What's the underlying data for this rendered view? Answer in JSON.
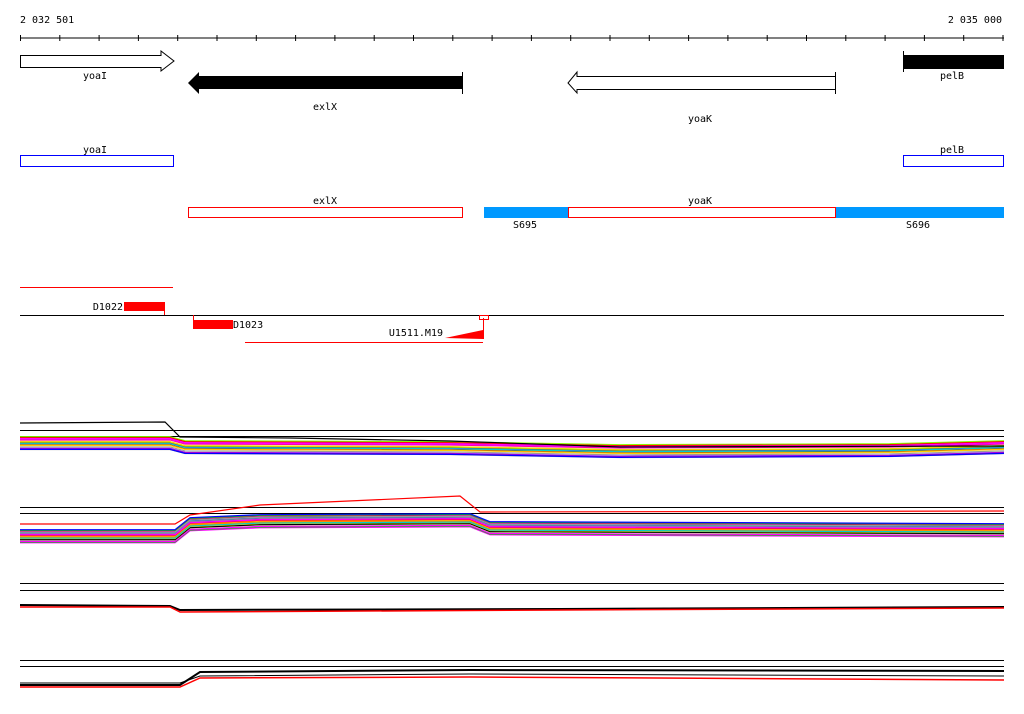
{
  "ruler": {
    "start_label": "2 032 501",
    "end_label": "2 035 000"
  },
  "genes": [
    {
      "name": "yoaI",
      "strand": "+"
    },
    {
      "name": "exlX",
      "strand": "-"
    },
    {
      "name": "yoaK",
      "strand": "-"
    },
    {
      "name": "pelB",
      "strand": "+"
    }
  ],
  "annotation_track": [
    {
      "label": "yoaI",
      "color": "#0000ff"
    },
    {
      "label": "pelB",
      "color": "#0000ff"
    }
  ],
  "transcripts": {
    "exlX": "exlX",
    "yoaK": "yoaK",
    "segments": [
      "S695",
      "S696"
    ],
    "segment_color": "#0099ff",
    "outline_color": "#ff0000"
  },
  "features": {
    "d1022": "D1022",
    "d1023": "D1023",
    "u1511": "U1511.M19",
    "color": "#ff0000"
  }
}
